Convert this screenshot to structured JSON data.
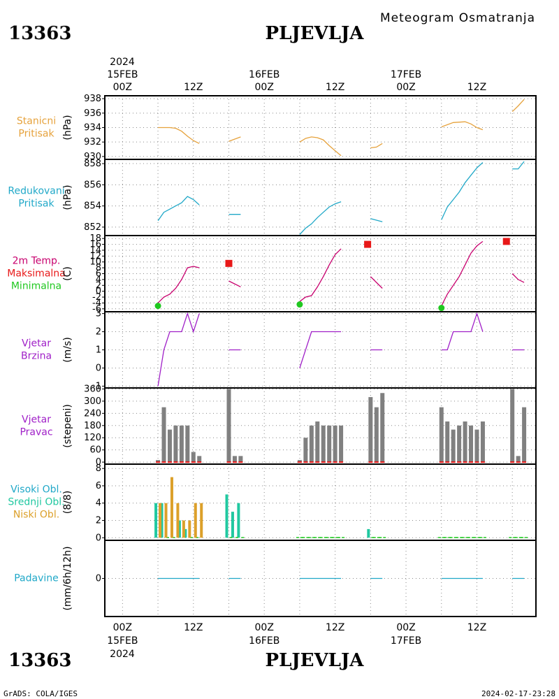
{
  "header": {
    "station_id": "13363",
    "station_name": "PLJEVLJA",
    "product": "Meteogram Osmatranja",
    "footer_left": "GrADS: COLA/IGES",
    "footer_right": "2024-02-17-23:28"
  },
  "time_axis": {
    "year": "2024",
    "days": [
      {
        "label": "15FEB",
        "hour": 0
      },
      {
        "label": "16FEB",
        "hour": 24
      },
      {
        "label": "17FEB",
        "hour": 48
      }
    ],
    "ticks": [
      {
        "label": "00Z",
        "hour": 0
      },
      {
        "label": "12Z",
        "hour": 12
      },
      {
        "label": "00Z",
        "hour": 24
      },
      {
        "label": "12Z",
        "hour": 36
      },
      {
        "label": "00Z",
        "hour": 48
      },
      {
        "label": "12Z",
        "hour": 60
      }
    ],
    "range_hours": [
      -3,
      70
    ]
  },
  "colors": {
    "orange": "#e6a23c",
    "cyan": "#20a8c8",
    "magenta": "#c8006e",
    "red": "#e81818",
    "green": "#20c820",
    "purple": "#a020c8",
    "gray": "#808080",
    "teal": "#20c8a0",
    "gold": "#dca02a"
  },
  "chart_data": [
    {
      "id": "stanicni",
      "type": "line",
      "labels": [
        {
          "text": "Stanicni",
          "color": "#e6a23c"
        },
        {
          "text": "Pritisak",
          "color": "#e6a23c"
        }
      ],
      "unit": "(hPa)",
      "ylim": [
        929.6,
        938.4
      ],
      "yticks": [
        930,
        932,
        934,
        936,
        938
      ],
      "series": [
        {
          "color": "#e6a23c",
          "segments": [
            [
              [
                6,
                934
              ],
              [
                8,
                934
              ],
              [
                9,
                933.9
              ],
              [
                10,
                933.5
              ],
              [
                11,
                932.8
              ],
              [
                12,
                932.2
              ],
              [
                13,
                931.8
              ]
            ],
            [
              [
                18,
                932.1
              ],
              [
                20,
                932.7
              ]
            ],
            [
              [
                30,
                932
              ],
              [
                31,
                932.5
              ],
              [
                32,
                932.7
              ],
              [
                33,
                932.6
              ],
              [
                34,
                932.3
              ],
              [
                35,
                931.5
              ],
              [
                36,
                930.8
              ],
              [
                37,
                930.1
              ]
            ],
            [
              [
                42,
                931.2
              ],
              [
                43,
                931.3
              ],
              [
                44,
                931.8
              ]
            ],
            [
              [
                54,
                934.1
              ],
              [
                56,
                934.7
              ],
              [
                58,
                934.8
              ],
              [
                59,
                934.5
              ],
              [
                60,
                934
              ],
              [
                61,
                933.7
              ]
            ],
            [
              [
                66,
                936.2
              ],
              [
                67,
                937
              ],
              [
                68,
                937.9
              ]
            ]
          ]
        }
      ]
    },
    {
      "id": "redukovani",
      "type": "line",
      "labels": [
        {
          "text": "Redukovani",
          "color": "#20a8c8"
        },
        {
          "text": "Pritisak",
          "color": "#20a8c8"
        }
      ],
      "unit": "(hPa)",
      "ylim": [
        851.2,
        858.4
      ],
      "yticks": [
        852,
        854,
        856,
        858
      ],
      "series": [
        {
          "color": "#20a8c8",
          "segments": [
            [
              [
                6,
                852.6
              ],
              [
                7,
                853.4
              ],
              [
                8,
                853.7
              ],
              [
                9,
                854
              ],
              [
                10,
                854.3
              ],
              [
                11,
                854.9
              ],
              [
                12,
                854.6
              ],
              [
                13,
                854.1
              ]
            ],
            [
              [
                18,
                853.2
              ],
              [
                20,
                853.2
              ]
            ],
            [
              [
                30,
                851.3
              ],
              [
                31,
                851.9
              ],
              [
                32,
                852.3
              ],
              [
                33,
                852.9
              ],
              [
                34,
                853.4
              ],
              [
                35,
                853.9
              ],
              [
                36,
                854.2
              ],
              [
                37,
                854.4
              ]
            ],
            [
              [
                42,
                852.8
              ],
              [
                44,
                852.5
              ]
            ],
            [
              [
                54,
                852.7
              ],
              [
                55,
                853.9
              ],
              [
                56,
                854.6
              ],
              [
                57,
                855.3
              ],
              [
                58,
                856.2
              ],
              [
                59,
                856.9
              ],
              [
                60,
                857.6
              ],
              [
                61,
                858.1
              ]
            ],
            [
              [
                66,
                857.5
              ],
              [
                67,
                857.5
              ],
              [
                68,
                858.2
              ]
            ]
          ]
        }
      ]
    },
    {
      "id": "temperatura",
      "type": "line",
      "labels": [
        {
          "text": "2m Temp.",
          "color": "#c8006e"
        },
        {
          "text": "Maksimalna",
          "color": "#e81818"
        },
        {
          "text": "Minimalna",
          "color": "#20c820"
        }
      ],
      "unit": "(C)",
      "ylim": [
        -7,
        19
      ],
      "yticks": [
        -6,
        -4,
        -2,
        0,
        2,
        4,
        6,
        8,
        10,
        12,
        14,
        16,
        18
      ],
      "series": [
        {
          "color": "#c8006e",
          "segments": [
            [
              [
                6,
                -4
              ],
              [
                7,
                -2
              ],
              [
                8,
                -1
              ],
              [
                9,
                1
              ],
              [
                10,
                4
              ],
              [
                11,
                8
              ],
              [
                12,
                8.5
              ],
              [
                13,
                8
              ]
            ],
            [
              [
                18,
                3.5
              ],
              [
                20,
                1.5
              ]
            ],
            [
              [
                30,
                -3.5
              ],
              [
                31,
                -2
              ],
              [
                32,
                -1.5
              ],
              [
                33,
                1.5
              ],
              [
                34,
                5
              ],
              [
                35,
                9
              ],
              [
                36,
                12.5
              ],
              [
                37,
                14.5
              ]
            ],
            [
              [
                42,
                5
              ],
              [
                44,
                1
              ]
            ],
            [
              [
                54,
                -5
              ],
              [
                55,
                -1
              ],
              [
                56,
                2
              ],
              [
                57,
                5
              ],
              [
                58,
                9
              ],
              [
                59,
                13
              ],
              [
                60,
                15.5
              ],
              [
                61,
                17
              ]
            ],
            [
              [
                66,
                6
              ],
              [
                67,
                4
              ],
              [
                68,
                3
              ]
            ]
          ]
        }
      ],
      "max_points": [
        {
          "x": 18,
          "y": 9.5
        },
        {
          "x": 41.5,
          "y": 16
        },
        {
          "x": 65,
          "y": 17
        }
      ],
      "min_points": [
        {
          "x": 6,
          "y": -5
        },
        {
          "x": 30,
          "y": -4.5
        },
        {
          "x": 54,
          "y": -5.7
        }
      ]
    },
    {
      "id": "brzina",
      "type": "line",
      "labels": [
        {
          "text": "Vjetar",
          "color": "#a020c8"
        },
        {
          "text": "Brzina",
          "color": "#a020c8"
        }
      ],
      "unit": "(m/s)",
      "ylim": [
        -1.1,
        3.1
      ],
      "yticks": [
        -1,
        0,
        1,
        2,
        3
      ],
      "series": [
        {
          "color": "#a020c8",
          "segments": [
            [
              [
                6,
                -1
              ],
              [
                7,
                1
              ],
              [
                8,
                2
              ],
              [
                10,
                2
              ],
              [
                11,
                3
              ],
              [
                12,
                2
              ],
              [
                13,
                3
              ]
            ],
            [
              [
                18,
                1
              ],
              [
                20,
                1
              ]
            ],
            [
              [
                30,
                0
              ],
              [
                32,
                2
              ],
              [
                37,
                2
              ]
            ],
            [
              [
                42,
                1
              ],
              [
                44,
                1
              ]
            ],
            [
              [
                54,
                1
              ],
              [
                55,
                1
              ],
              [
                56,
                2
              ],
              [
                59,
                2
              ],
              [
                60,
                3
              ],
              [
                61,
                2
              ]
            ],
            [
              [
                66,
                1
              ],
              [
                68,
                1
              ]
            ]
          ]
        }
      ]
    },
    {
      "id": "pravac",
      "type": "bar",
      "labels": [
        {
          "text": "Vjetar",
          "color": "#a020c8"
        },
        {
          "text": "Pravac",
          "color": "#a020c8"
        }
      ],
      "unit": "(stepeni)",
      "ylim": [
        -10,
        365
      ],
      "yticks": [
        0,
        60,
        120,
        180,
        240,
        300,
        360
      ],
      "x": [
        6,
        7,
        8,
        9,
        10,
        11,
        12,
        13,
        18,
        19,
        20,
        30,
        31,
        32,
        33,
        34,
        35,
        36,
        37,
        42,
        43,
        44,
        54,
        55,
        56,
        57,
        58,
        59,
        60,
        61,
        66,
        67,
        68
      ],
      "values": [
        10,
        270,
        160,
        180,
        180,
        180,
        50,
        30,
        360,
        30,
        30,
        10,
        120,
        180,
        200,
        180,
        180,
        180,
        180,
        320,
        270,
        340,
        270,
        200,
        160,
        180,
        200,
        180,
        160,
        200,
        360,
        30,
        270
      ],
      "color": "#808080",
      "baseline_color": "#e81818"
    },
    {
      "id": "oblaci",
      "type": "bar",
      "labels": [
        {
          "text": "Visoki Obl.",
          "color": "#20a8c8"
        },
        {
          "text": "Srednji Obl.",
          "color": "#20c8a0"
        },
        {
          "text": "Niski Obl.",
          "color": "#dca02a"
        }
      ],
      "unit": "(8/8)",
      "ylim": [
        -0.3,
        8.5
      ],
      "yticks": [
        0,
        2,
        4,
        6,
        8
      ],
      "x": [
        6,
        7,
        8,
        9,
        10,
        11,
        12,
        13,
        18,
        19,
        20,
        30,
        31,
        32,
        33,
        34,
        35,
        36,
        37,
        42,
        43,
        44,
        54,
        55,
        56,
        57,
        58,
        59,
        60,
        61,
        66,
        67,
        68
      ],
      "series": [
        {
          "name": "Srednji Obl.",
          "color": "#20c8a0",
          "values": [
            4,
            4,
            0,
            0,
            2,
            1,
            0,
            0,
            5,
            3,
            4,
            0,
            0,
            0,
            0,
            0,
            0,
            0,
            0,
            1,
            0,
            0,
            0,
            0,
            0,
            0,
            0,
            0,
            0,
            0,
            0,
            0,
            0
          ]
        },
        {
          "name": "Niski Obl.",
          "color": "#dca02a",
          "values": [
            4,
            4,
            7,
            4,
            2,
            2,
            4,
            4,
            0,
            0,
            0,
            0,
            0,
            0,
            0,
            0,
            0,
            0,
            0,
            0,
            0,
            0,
            0,
            0,
            0,
            0,
            0,
            0,
            0,
            0,
            0,
            0,
            0
          ]
        }
      ]
    },
    {
      "id": "padavine",
      "type": "line",
      "labels": [
        {
          "text": "Padavine",
          "color": "#20a8c8"
        }
      ],
      "unit": "(mm/6h/12h)",
      "ylim": [
        -1,
        1
      ],
      "yticks": [
        0
      ],
      "series": [
        {
          "color": "#20a8c8",
          "segments": [
            [
              [
                6,
                0
              ],
              [
                13,
                0
              ]
            ],
            [
              [
                18,
                0
              ],
              [
                20,
                0
              ]
            ],
            [
              [
                30,
                0
              ],
              [
                37,
                0
              ]
            ],
            [
              [
                42,
                0
              ],
              [
                44,
                0
              ]
            ],
            [
              [
                54,
                0
              ],
              [
                61,
                0
              ]
            ],
            [
              [
                66,
                0
              ],
              [
                68,
                0
              ]
            ]
          ]
        }
      ]
    }
  ]
}
